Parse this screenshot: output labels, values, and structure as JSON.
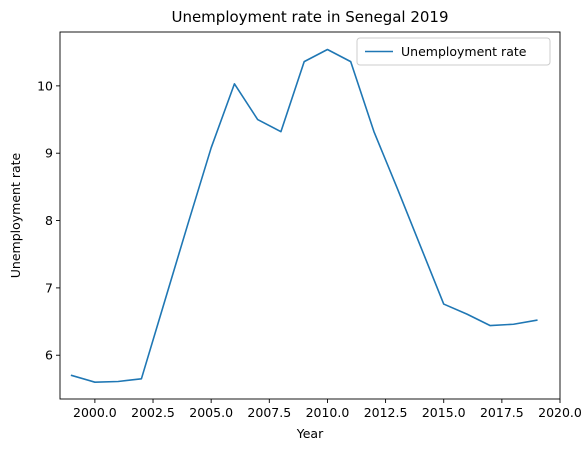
{
  "chart_data": {
    "type": "line",
    "title": "Unemployment rate in Senegal 2019",
    "xlabel": "Year",
    "ylabel": "Unemployment rate",
    "xlim": [
      1998.5,
      2020.0
    ],
    "ylim": [
      5.35,
      10.8
    ],
    "xticks": [
      2000.0,
      2002.5,
      2005.0,
      2007.5,
      2010.0,
      2012.5,
      2015.0,
      2017.5,
      2020.0
    ],
    "xtick_labels": [
      "2000.0",
      "2002.5",
      "2005.0",
      "2007.5",
      "2010.0",
      "2012.5",
      "2015.0",
      "2017.5",
      "2020.0"
    ],
    "yticks": [
      6,
      7,
      8,
      9,
      10
    ],
    "ytick_labels": [
      "6",
      "7",
      "8",
      "9",
      "10"
    ],
    "legend_position": "top-right",
    "grid": false,
    "series": [
      {
        "name": "Unemployment rate",
        "color": "#1f77b4",
        "x": [
          1999,
          2000,
          2001,
          2002,
          2003,
          2004,
          2005,
          2006,
          2007,
          2008,
          2009,
          2010,
          2011,
          2012,
          2013,
          2014,
          2015,
          2016,
          2017,
          2018,
          2019
        ],
        "y": [
          5.7,
          5.6,
          5.61,
          5.65,
          6.8,
          7.95,
          9.08,
          10.03,
          9.5,
          9.32,
          10.36,
          10.54,
          10.36,
          9.32,
          8.48,
          7.62,
          6.76,
          6.61,
          6.44,
          6.46,
          6.52
        ]
      }
    ]
  }
}
